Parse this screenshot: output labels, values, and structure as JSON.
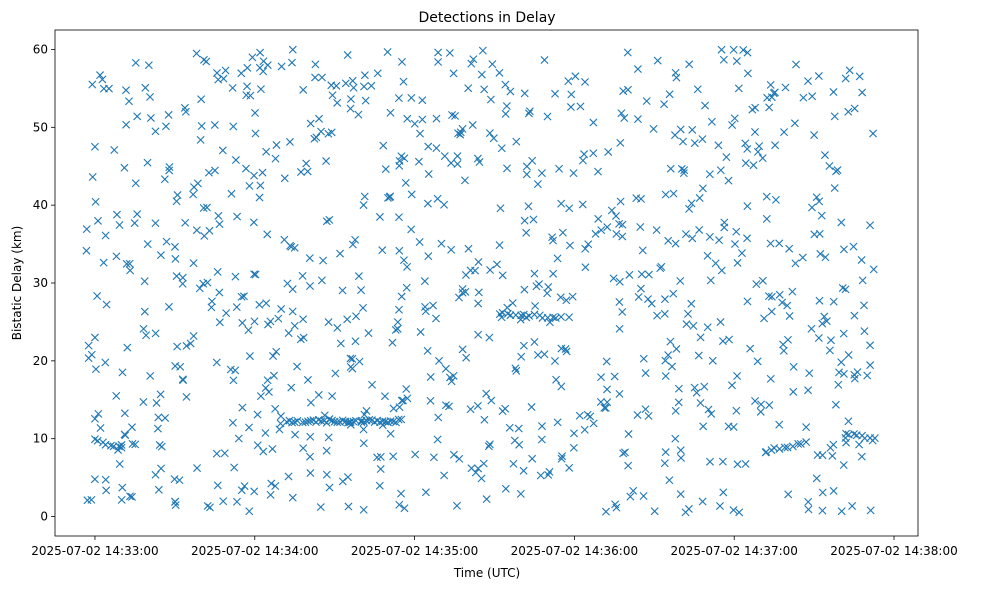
{
  "chart_data": {
    "type": "scatter",
    "title": "Detections in Delay",
    "xlabel": "Time (UTC)",
    "ylabel": "Bistatic Delay (km)",
    "xlim": [
      "2025-07-02 14:32:45",
      "2025-07-02 14:38:09"
    ],
    "ylim": [
      -2.5,
      62.5
    ],
    "xticks": [
      "2025-07-02 14:33:00",
      "2025-07-02 14:34:00",
      "2025-07-02 14:35:00",
      "2025-07-02 14:36:00",
      "2025-07-02 14:37:00",
      "2025-07-02 14:38:00"
    ],
    "yticks": [
      0,
      10,
      20,
      30,
      40,
      50,
      60
    ],
    "grid": false,
    "legend": "none",
    "marker": "x",
    "color": "#1f77b4",
    "series": [
      {
        "x": [
          "2025-07-02 14:32:59",
          "2025-07-02 14:33:00",
          "2025-07-02 14:33:04",
          "2025-07-02 14:33:08",
          "2025-07-02 14:33:10",
          "2025-07-02 14:33:21",
          "2025-07-02 14:33:31",
          "2025-07-02 14:33:45",
          "2025-07-02 14:33:52",
          "2025-07-02 14:34:02",
          "2025-07-02 14:34:15",
          "2025-07-02 14:34:28",
          "2025-07-02 14:34:40",
          "2025-07-02 14:34:50",
          "2025-07-02 14:35:05",
          "2025-07-02 14:35:18",
          "2025-07-02 14:35:32",
          "2025-07-02 14:35:45",
          "2025-07-02 14:35:58",
          "2025-07-02 14:36:10",
          "2025-07-02 14:36:25",
          "2025-07-02 14:36:38",
          "2025-07-02 14:36:50",
          "2025-07-02 14:37:05",
          "2025-07-02 14:37:18",
          "2025-07-02 14:37:30",
          "2025-07-02 14:37:42",
          "2025-07-02 14:37:51"
        ],
        "y": [
          55.5,
          47.5,
          36.1,
          15.5,
          9.2,
          51.2,
          41.3,
          50.3,
          17.5,
          59.6,
          24.5,
          12.5,
          12.3,
          12.1,
          40.2,
          49.8,
          26.0,
          31.2,
          25.6,
          17.9,
          40.8,
          57.0,
          33.5,
          59.6,
          27.5,
          49.0,
          9.5,
          22.0
        ]
      }
    ]
  }
}
